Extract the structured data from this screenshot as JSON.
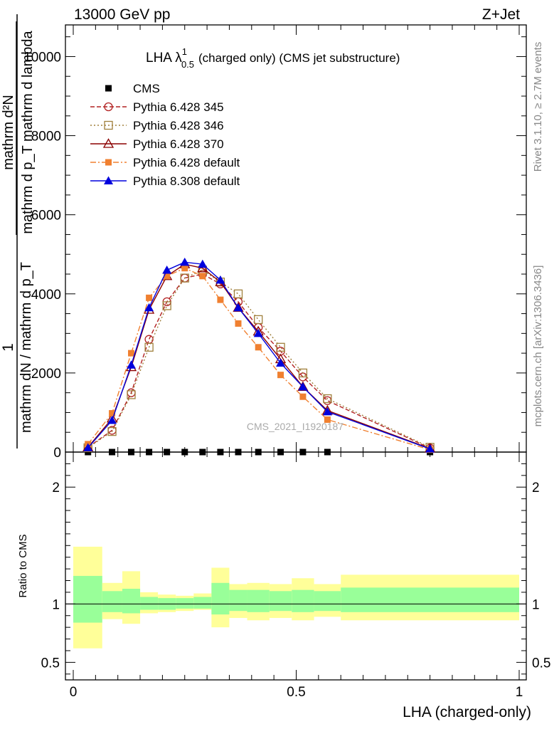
{
  "header": {
    "left": "13000 GeV pp",
    "right": "Z+Jet"
  },
  "plot_title": {
    "main": "LHA λ",
    "sup": "1",
    "sub": "0.5",
    "rest": "(charged only) (CMS jet substructure)"
  },
  "side_labels": {
    "rivet": "Rivet 3.1.10, ≥ 2.7M events",
    "mcplots": "mcplots.cern.ch [arXiv:1306.3436]"
  },
  "watermark": "CMS_2021_I1920187",
  "ylabel_main": {
    "num_one": "1",
    "num_top": "mathrm d²N",
    "num_bottom": "mathrm d p_T mathrm d lambda",
    "den": "mathrm dN / mathrm d p_T"
  },
  "ylabel_ratio": "Ratio to CMS",
  "xlabel": "LHA (charged-only)",
  "colors": {
    "cms": "#000000",
    "p345": "#b22222",
    "p346": "#a0803c",
    "p370": "#8b0000",
    "p6def": "#f08030",
    "p8def": "#0000dd",
    "band_inner": "#99ff99",
    "band_outer": "#ffff99"
  },
  "chart_data": {
    "type": "line",
    "x_range": [
      0,
      1
    ],
    "y_range_main": [
      0,
      10800
    ],
    "y_ticks_main": [
      {
        "v": 0,
        "label": "0"
      },
      {
        "v": 2000,
        "label": "2000"
      },
      {
        "v": 4000,
        "label": "4000"
      },
      {
        "v": 6000,
        "label": "6000"
      },
      {
        "v": 8000,
        "label": "8000"
      },
      {
        "v": 10000,
        "label": "10000"
      }
    ],
    "y_range_ratio": [
      0.35,
      2.3
    ],
    "y_ticks_ratio": [
      {
        "v": 0.5,
        "label": "0.5"
      },
      {
        "v": 1,
        "label": "1"
      },
      {
        "v": 2,
        "label": "2"
      }
    ],
    "x_ticks": [
      {
        "v": 0,
        "label": "0"
      },
      {
        "v": 0.5,
        "label": "0.5"
      },
      {
        "v": 1,
        "label": "1"
      }
    ],
    "bins": [
      [
        0,
        0.065
      ],
      [
        0.065,
        0.11
      ],
      [
        0.11,
        0.15
      ],
      [
        0.15,
        0.19
      ],
      [
        0.19,
        0.23
      ],
      [
        0.23,
        0.27
      ],
      [
        0.27,
        0.31
      ],
      [
        0.31,
        0.35
      ],
      [
        0.35,
        0.39
      ],
      [
        0.39,
        0.44
      ],
      [
        0.44,
        0.49
      ],
      [
        0.49,
        0.54
      ],
      [
        0.54,
        0.6
      ],
      [
        0.6,
        1.0
      ]
    ],
    "x": [
      0.033,
      0.087,
      0.13,
      0.17,
      0.21,
      0.25,
      0.29,
      0.33,
      0.37,
      0.415,
      0.465,
      0.515,
      0.57,
      0.8
    ],
    "series": [
      {
        "name": "CMS",
        "key": "cms",
        "marker": "square-filled",
        "values": [
          0,
          0,
          0,
          0,
          0,
          0,
          0,
          0,
          0,
          0,
          0,
          0,
          0,
          0
        ]
      },
      {
        "name": "Pythia 6.428 345",
        "key": "p345",
        "marker": "circle-open",
        "dash": "6 3",
        "values": [
          120,
          550,
          1500,
          2850,
          3800,
          4400,
          4500,
          4250,
          3800,
          3150,
          2550,
          1900,
          1300,
          100
        ]
      },
      {
        "name": "Pythia 6.428 346",
        "key": "p346",
        "marker": "square-open",
        "dash": "2 3",
        "values": [
          110,
          520,
          1450,
          2650,
          3700,
          4400,
          4600,
          4300,
          4000,
          3350,
          2650,
          2000,
          1350,
          120
        ]
      },
      {
        "name": "Pythia 6.428 370",
        "key": "p370",
        "marker": "triangle-open",
        "dash": "",
        "values": [
          120,
          850,
          2150,
          3600,
          4450,
          4750,
          4650,
          4300,
          3650,
          3050,
          2350,
          1650,
          1050,
          90
        ]
      },
      {
        "name": "Pythia 6.428 default",
        "key": "p6def",
        "marker": "square-filled",
        "dash": "8 3 2 3",
        "values": [
          200,
          980,
          2500,
          3900,
          4450,
          4650,
          4450,
          3850,
          3250,
          2650,
          1950,
          1400,
          820,
          60
        ]
      },
      {
        "name": "Pythia 8.308 default",
        "key": "p8def",
        "marker": "triangle-filled",
        "dash": "",
        "values": [
          110,
          800,
          2200,
          3650,
          4600,
          4800,
          4750,
          4350,
          3650,
          3000,
          2250,
          1650,
          1020,
          80
        ]
      }
    ],
    "ratio_band_inner": [
      [
        0.84,
        1.24
      ],
      [
        0.93,
        1.11
      ],
      [
        0.92,
        1.13
      ],
      [
        0.95,
        1.06
      ],
      [
        0.95,
        1.05
      ],
      [
        0.96,
        1.05
      ],
      [
        0.96,
        1.06
      ],
      [
        0.91,
        1.18
      ],
      [
        0.94,
        1.12
      ],
      [
        0.93,
        1.12
      ],
      [
        0.94,
        1.11
      ],
      [
        0.93,
        1.12
      ],
      [
        0.94,
        1.11
      ],
      [
        0.93,
        1.14
      ]
    ],
    "ratio_band_outer": [
      [
        0.62,
        1.49
      ],
      [
        0.87,
        1.18
      ],
      [
        0.83,
        1.28
      ],
      [
        0.92,
        1.1
      ],
      [
        0.93,
        1.08
      ],
      [
        0.94,
        1.07
      ],
      [
        0.95,
        1.09
      ],
      [
        0.8,
        1.31
      ],
      [
        0.88,
        1.17
      ],
      [
        0.86,
        1.18
      ],
      [
        0.88,
        1.17
      ],
      [
        0.86,
        1.22
      ],
      [
        0.89,
        1.17
      ],
      [
        0.86,
        1.25
      ]
    ]
  }
}
